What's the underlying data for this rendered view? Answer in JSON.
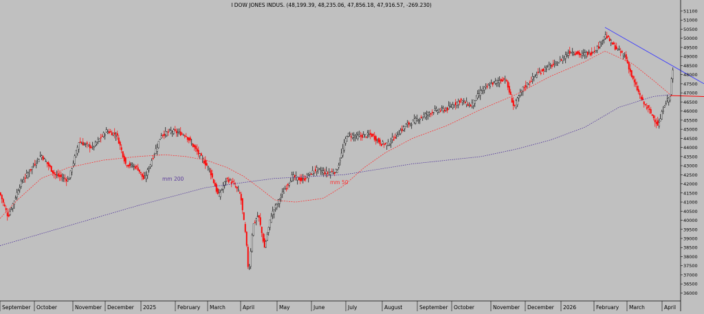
{
  "chart_data": {
    "type": "candlestick",
    "title": "I DOW JONES INDUS. (48,199.39, 48,235.06, 47,856.18, 47,916.57, -269.230)",
    "ylim": [
      35600,
      51200
    ],
    "y_ticks": [
      51100,
      51000,
      50500,
      50000,
      49500,
      49000,
      48500,
      48000,
      47500,
      47000,
      46500,
      46000,
      45500,
      45000,
      44500,
      44000,
      43500,
      43000,
      42500,
      42000,
      41500,
      41000,
      40500,
      40000,
      39500,
      39000,
      38500,
      38000,
      37500,
      37000,
      36500,
      36000
    ],
    "x_months": [
      "September",
      "October",
      "November",
      "December",
      "2025",
      "February",
      "March",
      "April",
      "May",
      "June",
      "July",
      "August",
      "September",
      "October",
      "November",
      "December",
      "2026",
      "February",
      "March",
      "April"
    ],
    "price_knots": [
      [
        0,
        41500
      ],
      [
        12,
        40200
      ],
      [
        30,
        42000
      ],
      [
        60,
        43600
      ],
      [
        80,
        42500
      ],
      [
        100,
        42200
      ],
      [
        115,
        44300
      ],
      [
        135,
        44000
      ],
      [
        155,
        44900
      ],
      [
        170,
        44700
      ],
      [
        183,
        43100
      ],
      [
        200,
        42900
      ],
      [
        210,
        42200
      ],
      [
        220,
        43200
      ],
      [
        235,
        44700
      ],
      [
        250,
        44900
      ],
      [
        270,
        44700
      ],
      [
        290,
        43600
      ],
      [
        305,
        42800
      ],
      [
        318,
        41300
      ],
      [
        330,
        42300
      ],
      [
        340,
        42000
      ],
      [
        350,
        41400
      ],
      [
        358,
        39000
      ],
      [
        362,
        37000
      ],
      [
        368,
        39700
      ],
      [
        376,
        40300
      ],
      [
        385,
        38500
      ],
      [
        395,
        40300
      ],
      [
        410,
        41400
      ],
      [
        425,
        42400
      ],
      [
        440,
        42200
      ],
      [
        460,
        42800
      ],
      [
        475,
        42600
      ],
      [
        490,
        42700
      ],
      [
        505,
        44700
      ],
      [
        520,
        44600
      ],
      [
        540,
        44700
      ],
      [
        555,
        44200
      ],
      [
        565,
        44200
      ],
      [
        575,
        44600
      ],
      [
        590,
        45200
      ],
      [
        610,
        45600
      ],
      [
        630,
        46000
      ],
      [
        650,
        46100
      ],
      [
        670,
        46600
      ],
      [
        685,
        46300
      ],
      [
        700,
        47100
      ],
      [
        715,
        47500
      ],
      [
        735,
        47800
      ],
      [
        748,
        46200
      ],
      [
        760,
        47200
      ],
      [
        780,
        48000
      ],
      [
        795,
        48400
      ],
      [
        810,
        48600
      ],
      [
        830,
        49300
      ],
      [
        845,
        49100
      ],
      [
        860,
        49200
      ],
      [
        872,
        49600
      ],
      [
        880,
        50200
      ],
      [
        895,
        49500
      ],
      [
        910,
        49000
      ],
      [
        920,
        47800
      ],
      [
        935,
        46500
      ],
      [
        945,
        46000
      ],
      [
        958,
        45200
      ],
      [
        967,
        46400
      ],
      [
        975,
        46800
      ],
      [
        978,
        48200
      ]
    ],
    "series": [
      {
        "name": "mm 50",
        "knots": [
          [
            0,
            40100
          ],
          [
            25,
            41100
          ],
          [
            60,
            42300
          ],
          [
            100,
            42900
          ],
          [
            150,
            43300
          ],
          [
            200,
            43500
          ],
          [
            240,
            43600
          ],
          [
            270,
            43500
          ],
          [
            300,
            43300
          ],
          [
            330,
            42900
          ],
          [
            355,
            42400
          ],
          [
            380,
            41700
          ],
          [
            400,
            41100
          ],
          [
            430,
            41000
          ],
          [
            470,
            41200
          ],
          [
            500,
            41900
          ],
          [
            530,
            42900
          ],
          [
            560,
            43700
          ],
          [
            600,
            44500
          ],
          [
            650,
            45200
          ],
          [
            700,
            46100
          ],
          [
            750,
            46900
          ],
          [
            800,
            47900
          ],
          [
            850,
            48700
          ],
          [
            880,
            49300
          ],
          [
            920,
            48600
          ],
          [
            950,
            47700
          ],
          [
            975,
            46900
          ]
        ]
      },
      {
        "name": "mm 200",
        "knots": [
          [
            0,
            38600
          ],
          [
            100,
            39700
          ],
          [
            200,
            40800
          ],
          [
            300,
            41800
          ],
          [
            400,
            42300
          ],
          [
            500,
            42500
          ],
          [
            600,
            43100
          ],
          [
            700,
            43500
          ],
          [
            750,
            43900
          ],
          [
            800,
            44400
          ],
          [
            850,
            45100
          ],
          [
            900,
            46200
          ],
          [
            950,
            46800
          ],
          [
            975,
            46900
          ]
        ]
      }
    ],
    "annotations": [
      {
        "text": "mm 200"
      },
      {
        "text": "mm 50"
      }
    ],
    "colors": {
      "background": "#c0c0c0",
      "down_candle": "#ff0000",
      "up_candle": "#ffffff",
      "candle_outline": "#000000",
      "mm50": "#ff3030",
      "mm200": "#4a2d9a",
      "trendline": "#3a3aff",
      "support_line": "#ff0000",
      "mm50_label": "#ff3030",
      "mm200_label": "#5a3a9a"
    },
    "trendline": {
      "from": [
        880,
        50600
      ],
      "to": [
        1024,
        47500
      ]
    },
    "support_line": {
      "from": [
        975,
        46850
      ],
      "to": [
        1024,
        46800
      ]
    },
    "grid": false,
    "legend": "none"
  }
}
